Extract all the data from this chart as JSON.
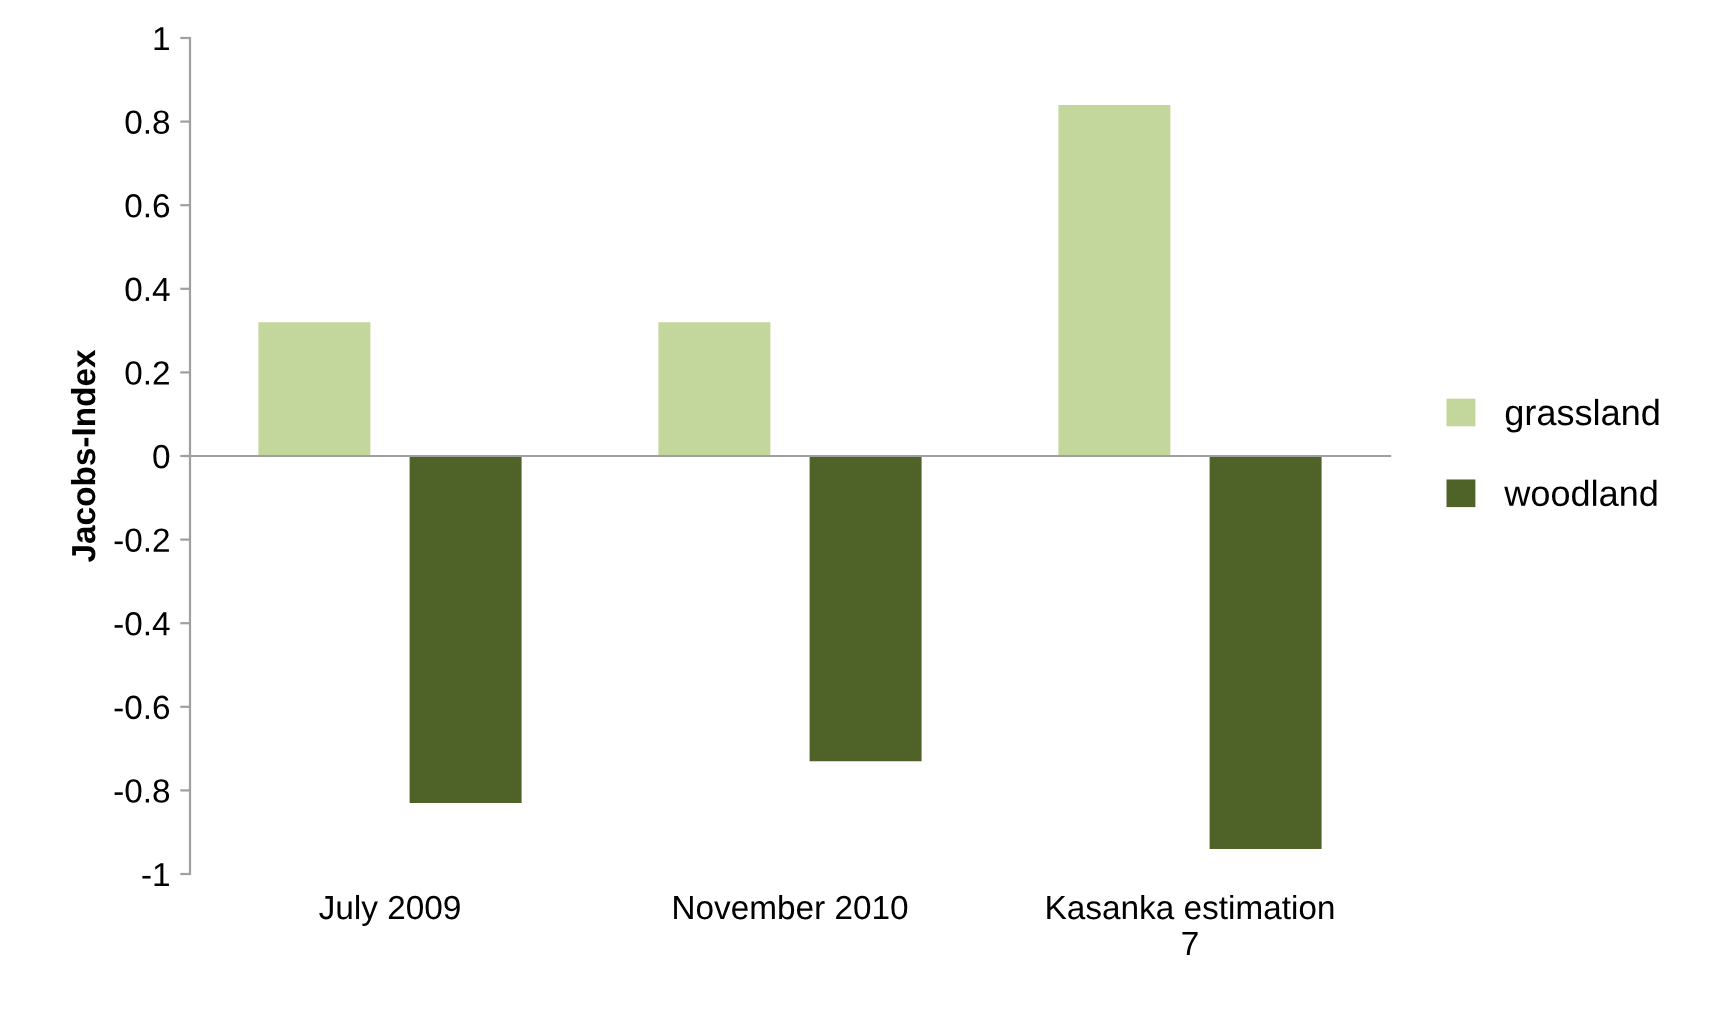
{
  "chart_data": {
    "type": "bar",
    "ylabel": "Jacobs-Index",
    "categories": [
      "July 2009",
      "November 2010",
      "Kasanka estimation\n7"
    ],
    "series": [
      {
        "name": "grassland",
        "color": "#c3d69b",
        "values": [
          0.32,
          0.32,
          0.84
        ]
      },
      {
        "name": "woodland",
        "color": "#4f6228",
        "values": [
          -0.83,
          -0.73,
          -0.94
        ]
      }
    ],
    "ylim": [
      -1,
      1
    ],
    "yticks": [
      -1,
      -0.8,
      -0.6,
      -0.4,
      -0.2,
      0,
      0.2,
      0.4,
      0.6,
      0.8,
      1
    ],
    "legend": "right"
  }
}
